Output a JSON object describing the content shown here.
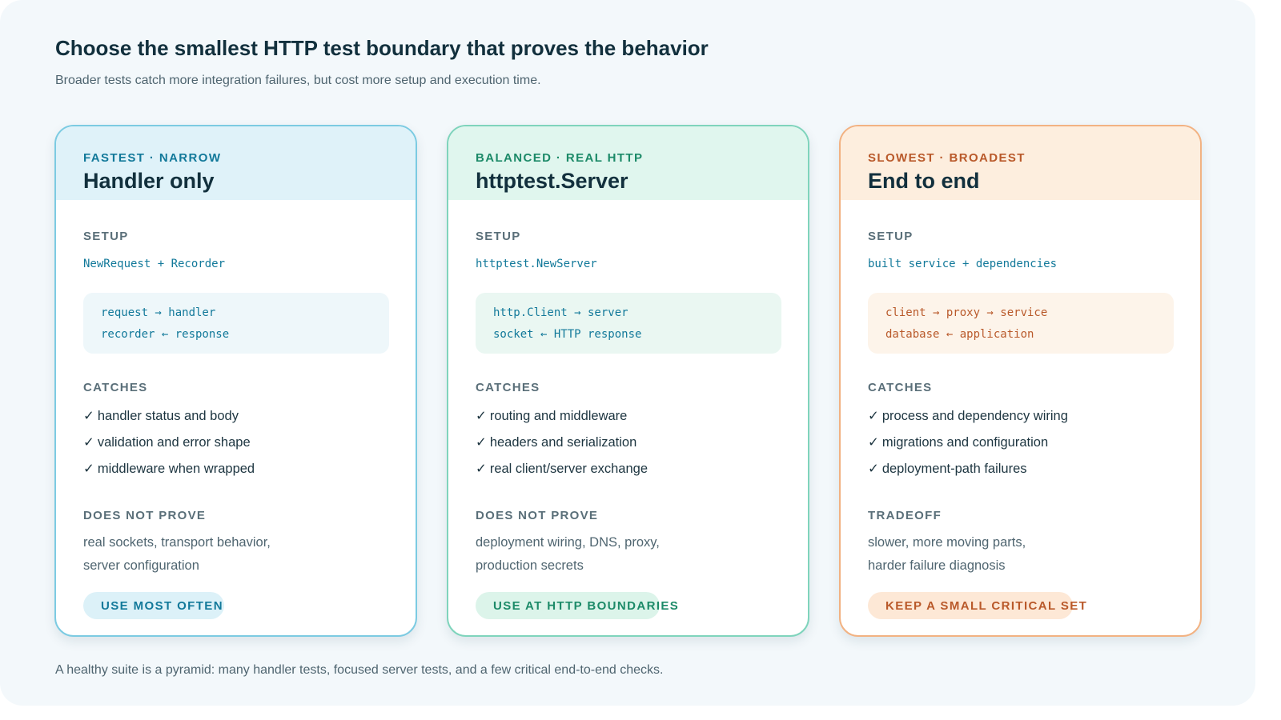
{
  "title": "Choose the smallest HTTP test boundary that proves the behavior",
  "subtitle": "Broader tests catch more integration failures, but cost more setup and execution time.",
  "footer": "A healthy suite is a pyramid: many handler tests, focused server tests, and a few critical end-to-end checks.",
  "check_glyph": "✓",
  "cards": [
    {
      "eyebrow": "FASTEST · NARROW",
      "title": "Handler only",
      "setup_label": "SETUP",
      "setup_value": "NewRequest + Recorder",
      "flow": [
        "request → handler",
        "recorder ← response"
      ],
      "catches_label": "CATCHES",
      "catches": [
        "handler status and body",
        "validation and error shape",
        "middleware when wrapped"
      ],
      "note_label": "DOES NOT PROVE",
      "note": [
        "real sockets, transport behavior,",
        "server configuration"
      ],
      "pill": "USE MOST OFTEN"
    },
    {
      "eyebrow": "BALANCED · REAL HTTP",
      "title": "httptest.Server",
      "setup_label": "SETUP",
      "setup_value": "httptest.NewServer",
      "flow": [
        "http.Client → server",
        "socket ← HTTP response"
      ],
      "catches_label": "CATCHES",
      "catches": [
        "routing and middleware",
        "headers and serialization",
        "real client/server exchange"
      ],
      "note_label": "DOES NOT PROVE",
      "note": [
        "deployment wiring, DNS, proxy,",
        "production secrets"
      ],
      "pill": "USE AT HTTP BOUNDARIES"
    },
    {
      "eyebrow": "SLOWEST · BROADEST",
      "title": "End to end",
      "setup_label": "SETUP",
      "setup_value": "built service + dependencies",
      "flow": [
        "client → proxy → service",
        "database ← application"
      ],
      "catches_label": "CATCHES",
      "catches": [
        "process and dependency wiring",
        "migrations and configuration",
        "deployment-path failures"
      ],
      "note_label": "TRADEOFF",
      "note": [
        "slower, more moving parts,",
        "harder failure diagnosis"
      ],
      "pill": "KEEP A SMALL CRITICAL SET"
    }
  ]
}
